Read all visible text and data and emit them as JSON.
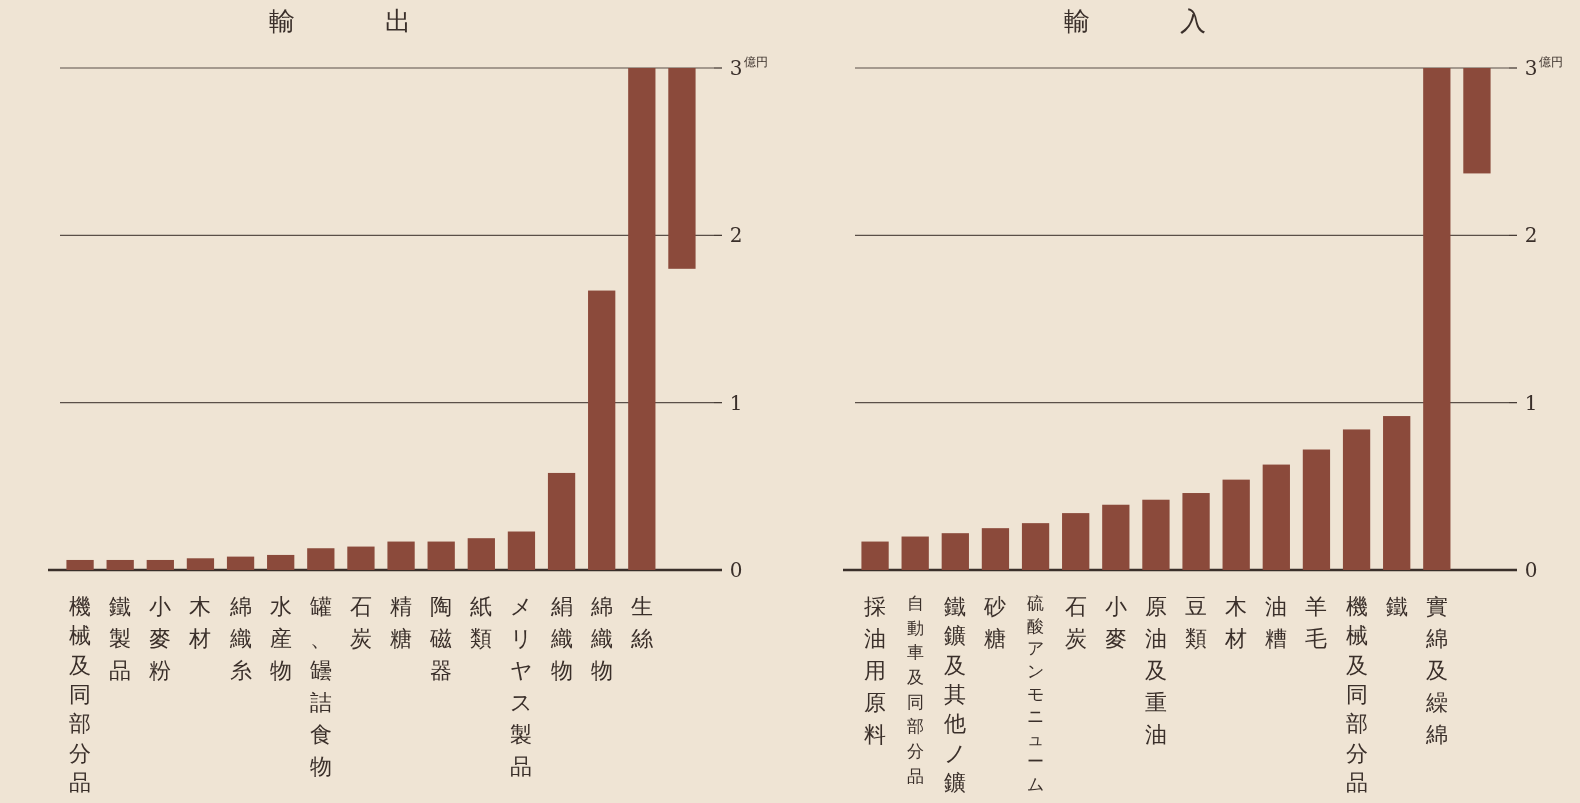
{
  "chart_data": [
    {
      "type": "bar",
      "title": "輸出",
      "ylabel": "億円",
      "color": "#8b4a3b",
      "grid": "y",
      "ylim": [
        0,
        3
      ],
      "yticks": [
        0,
        1,
        2,
        3
      ],
      "categories": [
        "機械及同部分品",
        "鐵製品",
        "小麥粉",
        "木材",
        "綿織糸",
        "水産物",
        "罐、罎詰食物",
        "石炭",
        "精糖",
        "陶磁器",
        "紙類",
        "メリヤス製品",
        "絹織物",
        "綿織物",
        "生絲",
        null
      ],
      "values": [
        0.06,
        0.06,
        0.06,
        0.07,
        0.08,
        0.09,
        0.13,
        0.14,
        0.17,
        0.17,
        0.19,
        0.23,
        0.58,
        1.67,
        3,
        1.2
      ],
      "base": [
        0,
        0,
        0,
        0,
        0,
        0,
        0,
        0,
        0,
        0,
        0,
        0,
        0,
        0,
        0,
        1.8
      ]
    },
    {
      "type": "bar",
      "title": "輸入",
      "ylabel": "億円",
      "color": "#8b4a3b",
      "grid": "y",
      "ylim": [
        0,
        3
      ],
      "yticks": [
        0,
        1,
        2,
        3
      ],
      "categories": [
        "採油用原料",
        "自動車及同部分品",
        "鐵鑛及其他ノ鑛",
        "砂糖",
        "硫酸アンモニューム",
        "石炭",
        "小麥",
        "原油及重油",
        "豆類",
        "木材",
        "油糟",
        "羊毛",
        "機械及同部分品",
        "鐵",
        "實綿及繰綿",
        null
      ],
      "values": [
        0.17,
        0.2,
        0.22,
        0.25,
        0.28,
        0.34,
        0.39,
        0.42,
        0.46,
        0.54,
        0.63,
        0.72,
        0.84,
        0.92,
        3,
        0.63
      ],
      "base": [
        0,
        0,
        0,
        0,
        0,
        0,
        0,
        0,
        0,
        0,
        0,
        0,
        0,
        0,
        0,
        2.37
      ]
    }
  ]
}
